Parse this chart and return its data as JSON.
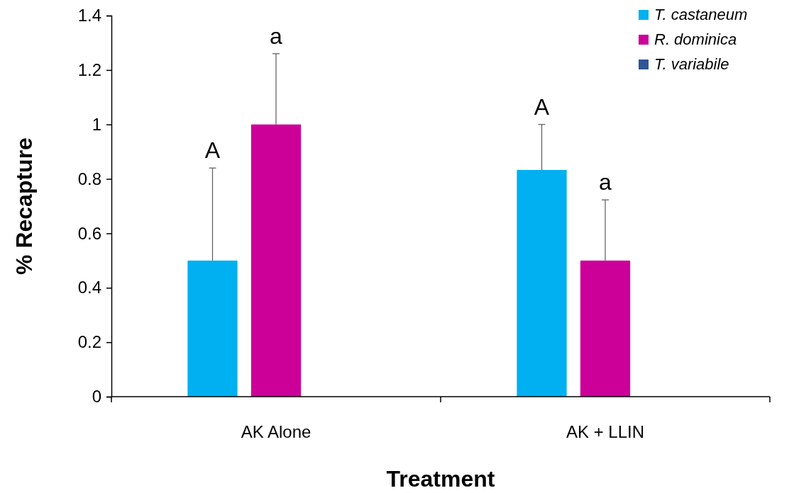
{
  "chart_data": {
    "type": "bar",
    "xlabel": "Treatment",
    "ylabel": "% Recapture",
    "categories": [
      "AK Alone",
      "AK + LLIN"
    ],
    "series": [
      {
        "name": "T. castaneum",
        "color": "#00b0f0",
        "values": [
          0.5,
          0.833
        ],
        "errors": [
          [
            0.5,
            0.84
          ],
          [
            0.833,
            1.0
          ]
        ]
      },
      {
        "name": "R. dominica",
        "color": "#cc0099",
        "values": [
          1.0,
          0.5
        ],
        "errors": [
          [
            1.0,
            1.26
          ],
          [
            0.5,
            0.723
          ]
        ]
      },
      {
        "name": "T. variabile",
        "color": "#2f5597",
        "values": [
          0,
          0
        ]
      }
    ],
    "ylim": [
      0,
      1.4
    ],
    "yticks": [
      0,
      {
        "value": 0.2,
        "label": "0.2"
      },
      {
        "value": 0.4,
        "label": "0.4"
      },
      {
        "value": 0.6,
        "label": "0.6"
      },
      {
        "value": 0.8,
        "label": "0.8"
      },
      1,
      {
        "value": 1.2,
        "label": "1.2"
      },
      {
        "value": 1.4,
        "label": "1.4"
      }
    ],
    "grid": false,
    "legend": "top right",
    "annotations": [
      "A",
      "a",
      "A",
      "a"
    ]
  }
}
